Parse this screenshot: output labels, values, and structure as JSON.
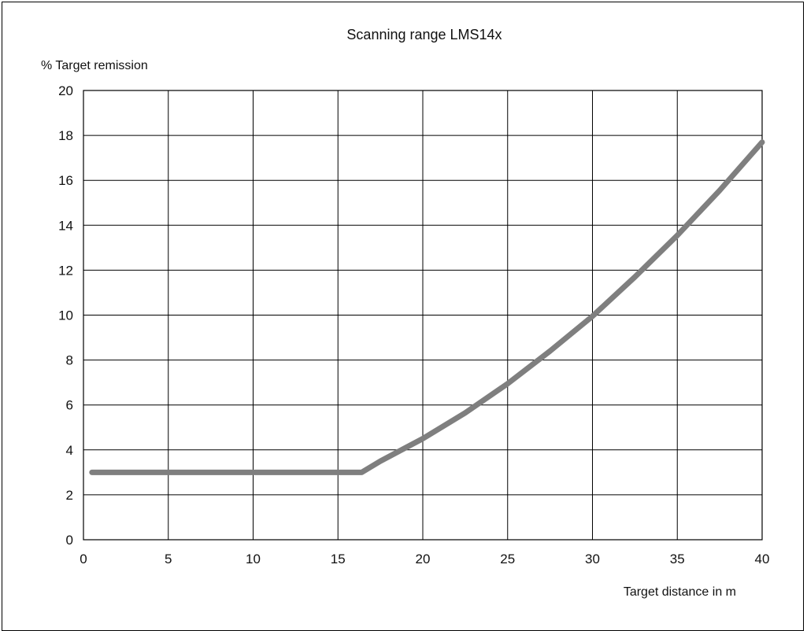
{
  "chart_data": {
    "type": "line",
    "title": "Scanning range LMS14x",
    "ylabel": "% Target remission",
    "xlabel": "Target distance in m",
    "xlim": [
      0,
      40
    ],
    "ylim": [
      0,
      20
    ],
    "x_ticks": [
      "0",
      "5",
      "10",
      "15",
      "20",
      "25",
      "30",
      "35",
      "40"
    ],
    "y_ticks": [
      "0",
      "2",
      "4",
      "6",
      "8",
      "10",
      "12",
      "14",
      "16",
      "18",
      "20"
    ],
    "grid": true,
    "series": [
      {
        "color": "#7f7f7f",
        "x": [
          0.5,
          16.4,
          17.5,
          20,
          22.5,
          25,
          27.5,
          30,
          32.5,
          35,
          37.5,
          40
        ],
        "y": [
          3,
          3,
          3.5,
          4.5,
          5.65,
          6.95,
          8.4,
          9.95,
          11.7,
          13.55,
          15.55,
          17.7
        ]
      }
    ]
  }
}
